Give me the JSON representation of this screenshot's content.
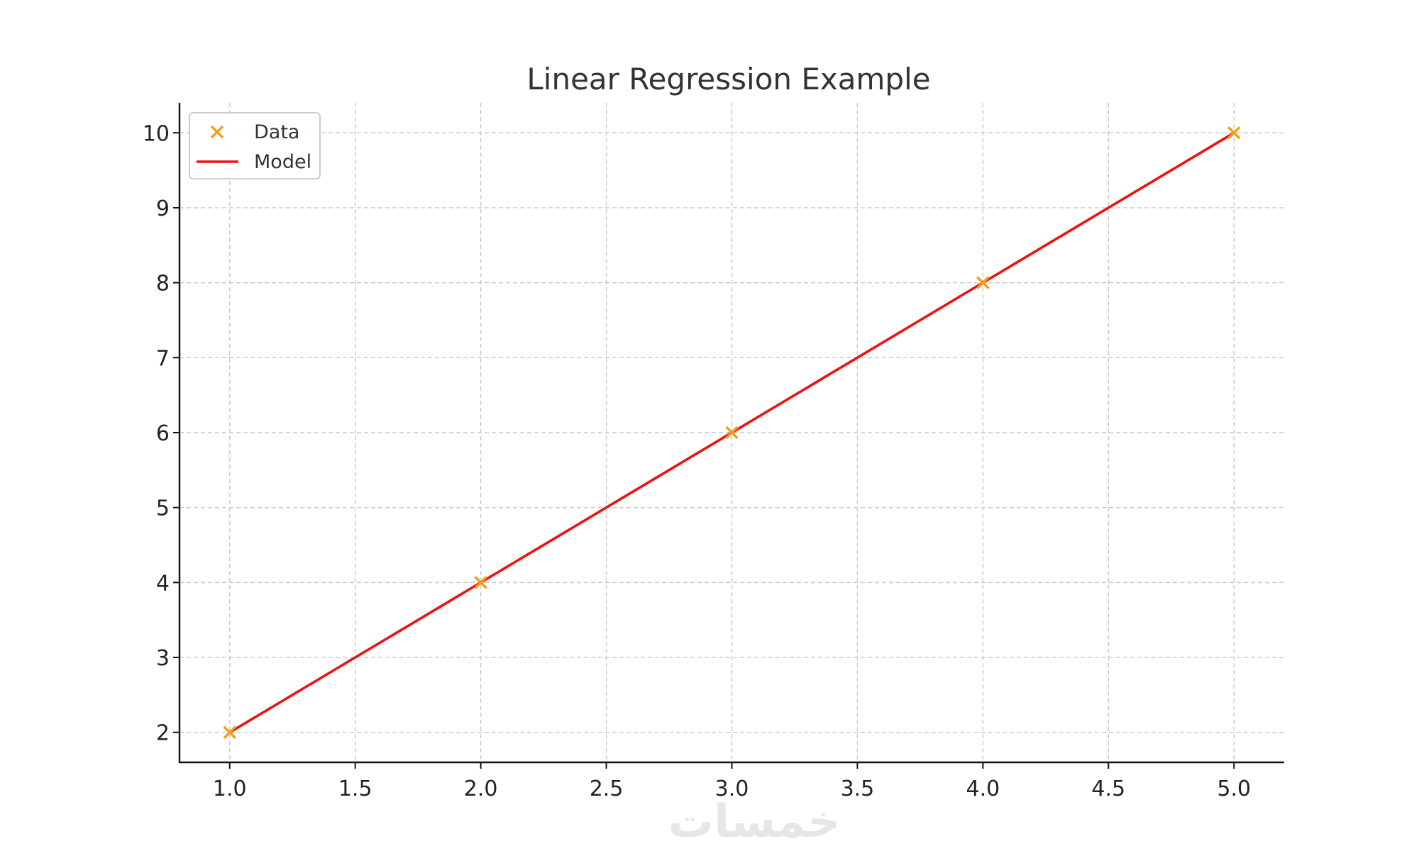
{
  "chart_data": {
    "type": "scatter",
    "title": "Linear Regression Example",
    "xlabel": "",
    "ylabel": "",
    "xlim": [
      0.8,
      5.2
    ],
    "ylim": [
      1.6,
      10.4
    ],
    "xticks": [
      1.0,
      1.5,
      2.0,
      2.5,
      3.0,
      3.5,
      4.0,
      4.5,
      5.0
    ],
    "xtick_labels": [
      "1.0",
      "1.5",
      "2.0",
      "2.5",
      "3.0",
      "3.5",
      "4.0",
      "4.5",
      "5.0"
    ],
    "yticks": [
      2,
      3,
      4,
      5,
      6,
      7,
      8,
      9,
      10
    ],
    "ytick_labels": [
      "2",
      "3",
      "4",
      "5",
      "6",
      "7",
      "8",
      "9",
      "10"
    ],
    "grid": true,
    "legend_position": "top-left",
    "series": [
      {
        "name": "Data",
        "kind": "scatter",
        "marker": "x",
        "color": "#f0a020",
        "x": [
          1,
          2,
          3,
          4,
          5
        ],
        "y": [
          2,
          4,
          6,
          8,
          10
        ]
      },
      {
        "name": "Model",
        "kind": "line",
        "color": "#ee1111",
        "x": [
          1,
          5
        ],
        "y": [
          2,
          10
        ]
      }
    ]
  },
  "watermark": {
    "text": "خمسات"
  }
}
